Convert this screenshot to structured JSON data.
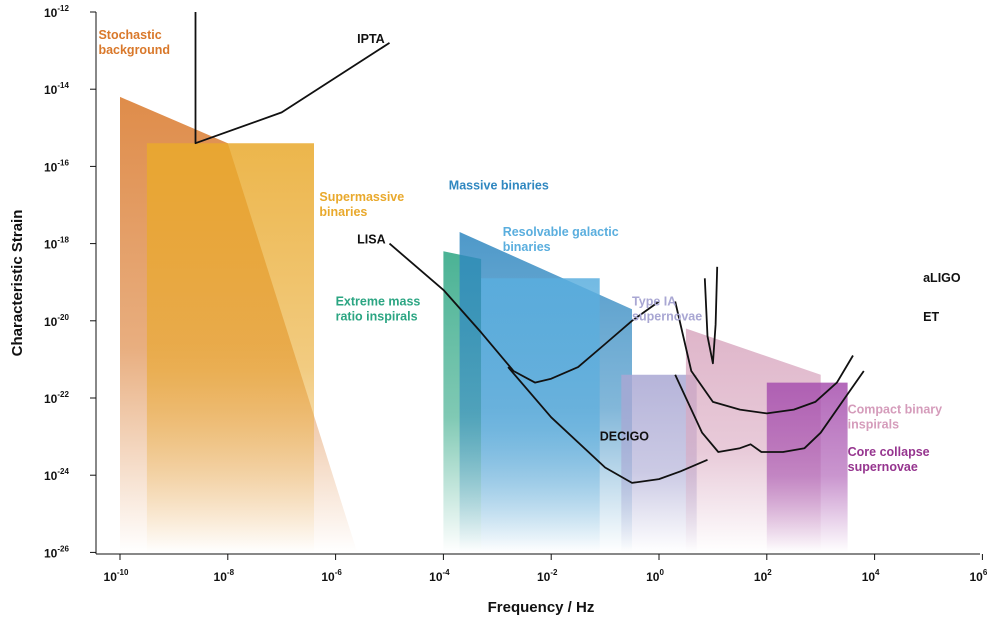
{
  "chart_data": {
    "type": "area",
    "xlabel": "Frequency / Hz",
    "ylabel": "Characteristic Strain",
    "xscale": "log",
    "yscale": "log",
    "xlim_exp": [
      -10,
      6
    ],
    "ylim_exp": [
      -26,
      -12
    ],
    "x_ticks": [
      {
        "base": "10",
        "exp": "-10"
      },
      {
        "base": "10",
        "exp": "-8"
      },
      {
        "base": "10",
        "exp": "-6"
      },
      {
        "base": "10",
        "exp": "-4"
      },
      {
        "base": "10",
        "exp": "-2"
      },
      {
        "base": "10",
        "exp": "0"
      },
      {
        "base": "10",
        "exp": "2"
      },
      {
        "base": "10",
        "exp": "4"
      },
      {
        "base": "10",
        "exp": "6"
      }
    ],
    "y_ticks": [
      {
        "base": "10",
        "exp": "-12"
      },
      {
        "base": "10",
        "exp": "-14"
      },
      {
        "base": "10",
        "exp": "-16"
      },
      {
        "base": "10",
        "exp": "-18"
      },
      {
        "base": "10",
        "exp": "-20"
      },
      {
        "base": "10",
        "exp": "-22"
      },
      {
        "base": "10",
        "exp": "-24"
      },
      {
        "base": "10",
        "exp": "-26"
      }
    ],
    "sources": [
      {
        "name": "Stochastic background",
        "color": "#d9782a",
        "region": [
          [
            -10,
            -14.2
          ],
          [
            -8,
            -15.4
          ],
          [
            -5.6,
            -26
          ],
          [
            -10,
            -26
          ]
        ]
      },
      {
        "name": "Supermassive binaries",
        "color": "#e9a92c",
        "region": [
          [
            -9.5,
            -15.4
          ],
          [
            -6.4,
            -15.4
          ],
          [
            -6.4,
            -26
          ],
          [
            -9.5,
            -26
          ]
        ]
      },
      {
        "name": "Extreme mass ratio inspirals",
        "color": "#2ba582",
        "region": [
          [
            -4,
            -18.2
          ],
          [
            -3.3,
            -18.4
          ],
          [
            -3.3,
            -26
          ],
          [
            -4,
            -26
          ]
        ]
      },
      {
        "name": "Massive binaries",
        "color": "#2f87c0",
        "region": [
          [
            -3.7,
            -17.7
          ],
          [
            -0.5,
            -19.7
          ],
          [
            -0.5,
            -26
          ],
          [
            -3.7,
            -26
          ]
        ]
      },
      {
        "name": "Resolvable galactic binaries",
        "color": "#5aaede",
        "region": [
          [
            -3.3,
            -18.9
          ],
          [
            -1.1,
            -18.9
          ],
          [
            -1.1,
            -26
          ],
          [
            -3.3,
            -26
          ]
        ]
      },
      {
        "name": "Type IA supernovae",
        "color": "#a9a7d3",
        "region": [
          [
            -0.7,
            -21.4
          ],
          [
            0.7,
            -21.4
          ],
          [
            0.7,
            -26
          ],
          [
            -0.7,
            -26
          ]
        ]
      },
      {
        "name": "Compact binary inspirals",
        "color": "#d9a8c0",
        "region": [
          [
            0.5,
            -20.2
          ],
          [
            3,
            -21.4
          ],
          [
            3,
            -26
          ],
          [
            0.5,
            -26
          ]
        ]
      },
      {
        "name": "Core collapse supernovae",
        "color": "#a64fae",
        "region": [
          [
            2,
            -21.6
          ],
          [
            3.5,
            -21.6
          ],
          [
            3.5,
            -26
          ],
          [
            2,
            -26
          ]
        ]
      }
    ],
    "detectors": [
      {
        "name": "IPTA",
        "points": [
          [
            -8.6,
            -12
          ],
          [
            -8.6,
            -15.4
          ],
          [
            -7,
            -14.6
          ],
          [
            -5,
            -12.8
          ]
        ]
      },
      {
        "name": "LISA",
        "points": [
          [
            -5,
            -18
          ],
          [
            -4,
            -19.2
          ],
          [
            -3.3,
            -20.3
          ],
          [
            -2.7,
            -21.3
          ],
          [
            -2.3,
            -21.6
          ],
          [
            -2,
            -21.5
          ],
          [
            -1.5,
            -21.2
          ],
          [
            -1,
            -20.6
          ],
          [
            -0.5,
            -20
          ],
          [
            0,
            -19.5
          ]
        ]
      },
      {
        "name": "DECIGO",
        "points": [
          [
            -2.8,
            -21.2
          ],
          [
            -2,
            -22.5
          ],
          [
            -1,
            -23.8
          ],
          [
            -0.5,
            -24.2
          ],
          [
            0,
            -24.1
          ],
          [
            0.4,
            -23.9
          ],
          [
            0.9,
            -23.6
          ]
        ]
      },
      {
        "name": "aLIGO",
        "points": [
          [
            0.3,
            -19.5
          ],
          [
            0.6,
            -21.3
          ],
          [
            1,
            -22.1
          ],
          [
            1.5,
            -22.3
          ],
          [
            2,
            -22.4
          ],
          [
            2.5,
            -22.3
          ],
          [
            2.9,
            -22.1
          ],
          [
            3.3,
            -21.6
          ],
          [
            3.6,
            -20.9
          ]
        ]
      },
      {
        "name": "ET",
        "points": [
          [
            0.3,
            -21.4
          ],
          [
            0.8,
            -22.9
          ],
          [
            1.1,
            -23.4
          ],
          [
            1.5,
            -23.3
          ],
          [
            1.7,
            -23.2
          ],
          [
            1.9,
            -23.4
          ],
          [
            2.3,
            -23.4
          ],
          [
            2.7,
            -23.3
          ],
          [
            3,
            -22.9
          ],
          [
            3.5,
            -21.9
          ],
          [
            3.8,
            -21.3
          ]
        ]
      },
      {
        "name": "aLIGO",
        "points": [
          [
            0.85,
            -18.9
          ],
          [
            0.9,
            -20.4
          ],
          [
            1,
            -21.1
          ],
          [
            1.05,
            -20.1
          ],
          [
            1.08,
            -18.6
          ]
        ]
      }
    ],
    "labels": [
      {
        "text": "Stochastic\nbackground",
        "x": -10.4,
        "y": -12.7,
        "color": "#d9782a"
      },
      {
        "text": "IPTA",
        "x": -5.6,
        "y": -12.8,
        "color": "#111111"
      },
      {
        "text": "Supermassive\nbinaries",
        "x": -6.3,
        "y": -16.9,
        "color": "#e9a92c"
      },
      {
        "text": "Massive binaries",
        "x": -3.9,
        "y": -16.6,
        "color": "#2f87c0"
      },
      {
        "text": "LISA",
        "x": -5.6,
        "y": -18,
        "color": "#111111"
      },
      {
        "text": "Resolvable galactic\nbinaries",
        "x": -2.9,
        "y": -17.8,
        "color": "#5aaede"
      },
      {
        "text": "Extreme mass\nratio inspirals",
        "x": -6,
        "y": -19.6,
        "color": "#2ba582"
      },
      {
        "text": "Type IA\nsupernovae",
        "x": -0.5,
        "y": -19.6,
        "color": "#a9a7d3"
      },
      {
        "text": "aLIGO",
        "x": 4.9,
        "y": -19,
        "color": "#111111"
      },
      {
        "text": "ET",
        "x": 4.9,
        "y": -20,
        "color": "#111111"
      },
      {
        "text": "DECIGO",
        "x": -1.1,
        "y": -23.1,
        "color": "#111111"
      },
      {
        "text": "Compact binary\ninspirals",
        "x": 3.5,
        "y": -22.4,
        "color": "#d59cbb"
      },
      {
        "text": "Core collapse\nsupernovae",
        "x": 3.5,
        "y": -23.5,
        "color": "#96358f"
      }
    ]
  }
}
